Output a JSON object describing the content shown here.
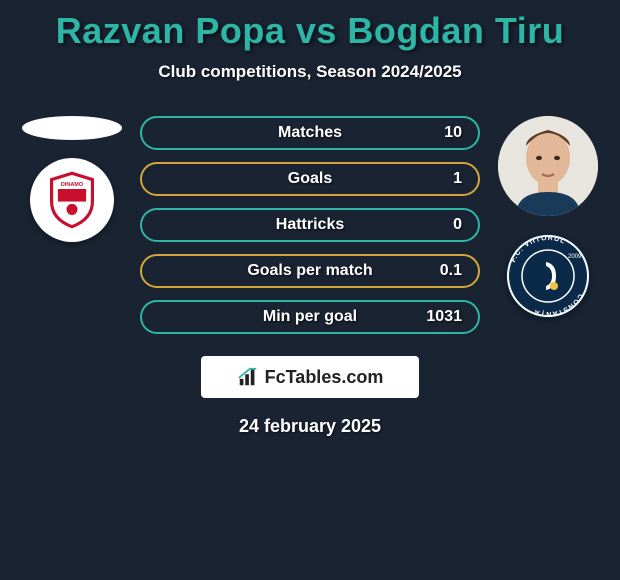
{
  "title_color": "#2db5a5",
  "title": "Razvan Popa vs Bogdan Tiru",
  "subtitle": "Club competitions, Season 2024/2025",
  "stats": [
    {
      "label": "Matches",
      "value": "10",
      "border_color": "#2db5a5"
    },
    {
      "label": "Goals",
      "value": "1",
      "border_color": "#d4a53a"
    },
    {
      "label": "Hattricks",
      "value": "0",
      "border_color": "#2db5a5"
    },
    {
      "label": "Goals per match",
      "value": "0.1",
      "border_color": "#d4a53a"
    },
    {
      "label": "Min per goal",
      "value": "1031",
      "border_color": "#2db5a5"
    }
  ],
  "left": {
    "player_name": "Razvan Popa",
    "club_name": "Dinamo Bucuresti",
    "club_badge_bg": "#ffffff",
    "club_badge_primary": "#c8102e"
  },
  "right": {
    "player_name": "Bogdan Tiru",
    "club_name": "FC Viitorul Constanta",
    "club_badge_bg": "#0b2a4a",
    "club_badge_primary": "#ffffff"
  },
  "brand": "FcTables.com",
  "date": "24 february 2025",
  "background_color": "#1a2332"
}
